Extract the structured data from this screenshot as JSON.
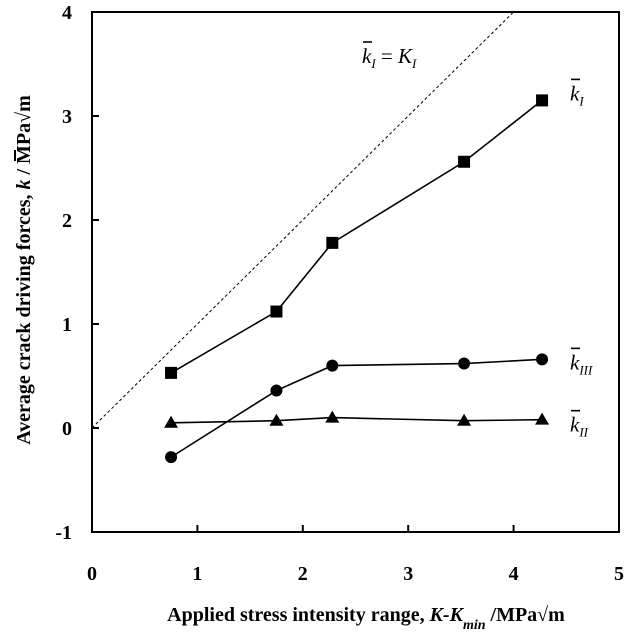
{
  "chart_data": {
    "type": "line",
    "xlabel_main": "Applied stress intensity range, ",
    "xlabel_var": "K-K",
    "xlabel_sub": "min",
    "xlabel_unit": " /MPa√m",
    "ylabel_main": "Average crack driving forces, ",
    "ylabel_var": "k",
    "ylabel_unit": " / MPa√m",
    "xlim": [
      0,
      5
    ],
    "ylim": [
      -1,
      4
    ],
    "x_ticks": [
      0,
      1,
      2,
      3,
      4,
      5
    ],
    "y_ticks": [
      -1,
      0,
      1,
      2,
      3,
      4
    ],
    "grid": false,
    "series": [
      {
        "label": "k",
        "label_sub": "I",
        "marker": "square",
        "x": [
          0.75,
          1.75,
          2.28,
          3.53,
          4.27
        ],
        "y": [
          0.53,
          1.12,
          1.78,
          2.56,
          3.15
        ]
      },
      {
        "label": "k",
        "label_sub": "III",
        "marker": "circle",
        "x": [
          0.75,
          1.75,
          2.28,
          3.53,
          4.27
        ],
        "y": [
          -0.28,
          0.36,
          0.6,
          0.62,
          0.66
        ]
      },
      {
        "label": "k",
        "label_sub": "II",
        "marker": "triangle",
        "x": [
          0.75,
          1.75,
          2.28,
          3.53,
          4.27
        ],
        "y": [
          0.05,
          0.07,
          0.1,
          0.07,
          0.08
        ]
      }
    ],
    "reference_line": {
      "style": "dashed",
      "x": [
        0,
        5
      ],
      "y": [
        0,
        5
      ],
      "label_left": "k",
      "label_left_sub": "I",
      "label_eq": " = ",
      "label_right": "K",
      "label_right_sub": "I"
    }
  }
}
